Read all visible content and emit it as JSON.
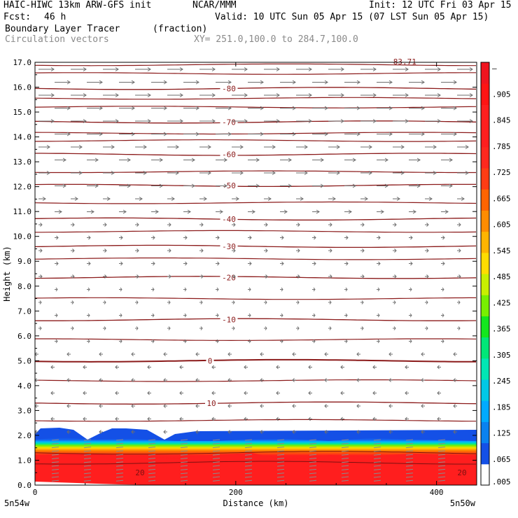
{
  "header": {
    "model": "HAIC-HIWC 13km ARW-GFS init",
    "org": "NCAR/MMM",
    "init": "Init: 12 UTC Fri 03 Apr 15",
    "fcst_label": "Fcst:",
    "fcst_value": "46 h",
    "valid": "Valid: 10 UTC Sun 05 Apr 15 (07 LST Sun 05 Apr 15)",
    "field": "Boundary Layer Tracer",
    "units": "(fraction)",
    "vectors": "Circulation vectors",
    "xy": "XY= 251.0,100.0 to 284.7,100.0"
  },
  "chart_data": {
    "type": "heatmap",
    "title": "Boundary Layer Tracer",
    "ylabel": "Height (km)",
    "xlabel": "Distance (km)",
    "xlim": [
      0,
      440
    ],
    "ylim": [
      0,
      17
    ],
    "x_ticks": [
      {
        "value": 0,
        "label": "0"
      },
      {
        "value": 200,
        "label": "200"
      },
      {
        "value": 400,
        "label": "400"
      }
    ],
    "y_ticks": [
      "0.0",
      "1.0",
      "2.0",
      "3.0",
      "4.0",
      "5.0",
      "6.0",
      "7.0",
      "8.0",
      "9.0",
      "10.0",
      "11.0",
      "12.0",
      "13.0",
      "14.0",
      "15.0",
      "16.0",
      "17.0"
    ],
    "left_end_label": "5n54w",
    "right_end_label": "5n50w",
    "colorbar": {
      "labels": [
        ".005",
        ".065",
        ".125",
        ".185",
        ".245",
        ".305",
        ".365",
        ".425",
        ".485",
        ".545",
        ".605",
        ".665",
        ".725",
        ".785",
        ".845",
        ".905",
        "–"
      ],
      "colors": [
        "#ffffff",
        "#1450e6",
        "#0a82f0",
        "#00aaff",
        "#00c8e6",
        "#00e6b4",
        "#00e678",
        "#14e61e",
        "#78f000",
        "#c8f000",
        "#ffdc00",
        "#ffb400",
        "#ff8c00",
        "#ff6400",
        "#ff3c14",
        "#ff281e",
        "#ff1e1e",
        "#ff1e1e",
        "#ff1414",
        "#f0141e"
      ]
    },
    "temperature_contours": [
      {
        "label": "10",
        "height_km": 3.3
      },
      {
        "label": "0",
        "height_km": 5.0
      },
      {
        "label": "-10",
        "height_km": 6.65
      },
      {
        "label": "-20",
        "height_km": 8.35
      },
      {
        "label": "-30",
        "height_km": 9.6
      },
      {
        "label": "-40",
        "height_km": 10.7
      },
      {
        "label": "-50",
        "height_km": 12.05
      },
      {
        "label": "-60",
        "height_km": 13.3
      },
      {
        "label": "-70",
        "height_km": 14.6
      },
      {
        "label": "-80",
        "height_km": 15.95
      },
      {
        "label": "-83.71",
        "height_km": 17.1
      }
    ],
    "low_contour_labels": [
      "20",
      "20"
    ],
    "extra_contour_heights_km": [
      11.35,
      12.6,
      13.85,
      15.2,
      16.55,
      14.15,
      15.55,
      16.9,
      10.2,
      9.1,
      7.5,
      5.85,
      4.2,
      2.6
    ],
    "tracer_layer": {
      "top_km": 2.2,
      "blue_top_km": 2.25,
      "green_km": 1.9,
      "red_below_km": 1.7
    }
  }
}
